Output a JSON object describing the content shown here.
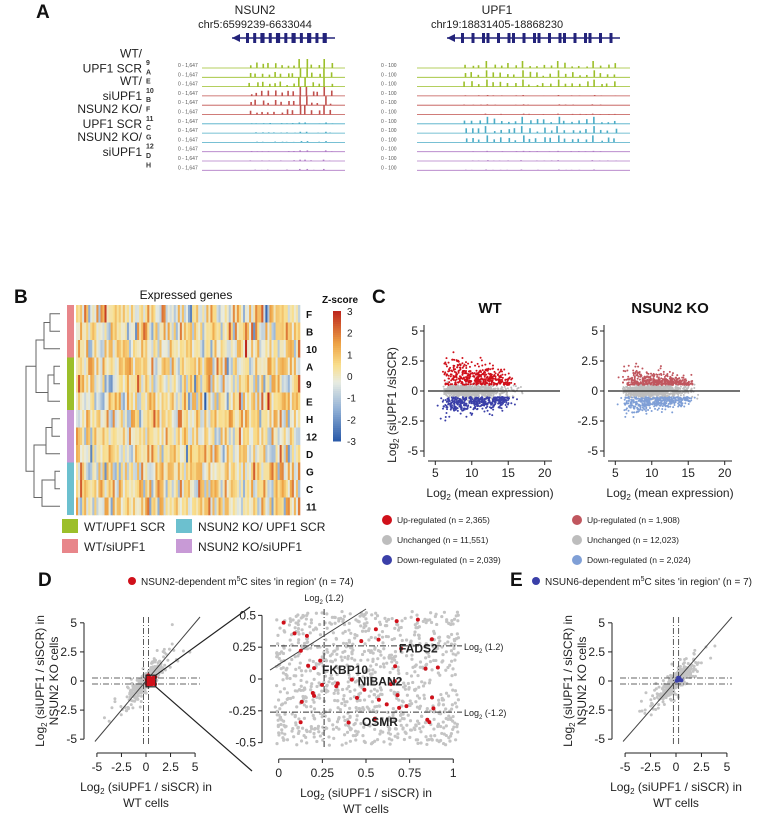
{
  "panels": {
    "a": "A",
    "b": "B",
    "c": "C",
    "d": "D",
    "e": "E"
  },
  "panel_a": {
    "genes": [
      {
        "name": "NSUN2",
        "locus": "chr5:6599239-6633044",
        "scale": "0 - 1,647"
      },
      {
        "name": "UPF1",
        "locus": "chr19:18831405-18868230",
        "scale": "0 - 100"
      }
    ],
    "groups": [
      {
        "line1": "WT/",
        "line2": "UPF1 SCR",
        "color": "#9cbf2a",
        "tracks": [
          "9",
          "A",
          "E"
        ]
      },
      {
        "line1": "WT/",
        "line2": "siUPF1",
        "color": "#c0504d",
        "tracks": [
          "10",
          "B",
          "F"
        ]
      },
      {
        "line1": "NSUN2 KO/",
        "line2": "UPF1 SCR",
        "color": "#4bacc6",
        "tracks": [
          "11",
          "C",
          "G"
        ]
      },
      {
        "line1": "NSUN2 KO/",
        "line2": "siUPF1",
        "color": "#b07cc6",
        "tracks": [
          "12",
          "D",
          "H"
        ]
      }
    ]
  },
  "panel_b": {
    "title": "Expressed genes",
    "colorbar_title": "Z-score",
    "colorbar_ticks": [
      "3",
      "2",
      "1",
      "0",
      "-1",
      "-2",
      "-3"
    ],
    "row_labels": [
      "F",
      "B",
      "10",
      "A",
      "9",
      "E",
      "H",
      "12",
      "D",
      "G",
      "C",
      "11"
    ],
    "group_colors": [
      "#e8868a",
      "#9cbf2a",
      "#c89ad6",
      "#6cc0cf"
    ],
    "legend": [
      {
        "label": "WT/UPF1 SCR",
        "color": "#9cbf2a"
      },
      {
        "label": "NSUN2 KO/ UPF1 SCR",
        "color": "#6cc0cf"
      },
      {
        "label": "WT/siUPF1",
        "color": "#e8868a"
      },
      {
        "label": "NSUN2 KO/siUPF1",
        "color": "#c89ad6"
      }
    ]
  },
  "panel_c": {
    "ylabel": "Log2 (siUPF1 /siSCR)",
    "xlabel": "Log2 (mean expression)",
    "plots": [
      {
        "title": "WT",
        "legend": [
          {
            "label": "Up-regulated (n = 2,365)",
            "color": "#d0101a"
          },
          {
            "label": "Unchanged (n = 11,551)",
            "color": "#bdbdbd"
          },
          {
            "label": "Down-regulated (n = 2,039)",
            "color": "#3a3fa8"
          }
        ]
      },
      {
        "title": "NSUN2 KO",
        "legend": [
          {
            "label": "Up-regulated (n = 1,908)",
            "color": "#c0565e"
          },
          {
            "label": "Unchanged (n = 12,023)",
            "color": "#bdbdbd"
          },
          {
            "label": "Down-regulated (n = 2,024)",
            "color": "#7f9fd6"
          }
        ]
      }
    ],
    "x_ticks": [
      "5",
      "10",
      "15",
      "20"
    ],
    "y_ticks": [
      "5",
      "2.5",
      "0",
      "-2.5",
      "-5"
    ]
  },
  "panel_d": {
    "legend": "NSUN2-dependent m5C sites 'in region' (n = 74)",
    "ylabel_line1": "Log2 (siUPF1 / siSCR) in",
    "ylabel_line2": "NSUN2 KO cells",
    "xlabel_line1": "Log2 (siUPF1 / siSCR) in",
    "xlabel_line2": "WT cells",
    "x_ticks": [
      "-5",
      "-2.5",
      "0",
      "2.5",
      "5"
    ],
    "y_ticks": [
      "5",
      "2.5",
      "0",
      "-2.5",
      "-5"
    ],
    "zoom_x_ticks": [
      "0",
      "0.25",
      "0.5",
      "0.75",
      "1"
    ],
    "zoom_y_ticks": [
      "0.5",
      "0.25",
      "0",
      "-0.25",
      "-0.5"
    ],
    "thresholds": {
      "top": "Log2 (1.2)",
      "right_upper": "Log2 (1.2)",
      "right_lower": "Log2 (-1.2)"
    },
    "genes": [
      "FADS2",
      "FKBP10",
      "NIBAN2",
      "OSMR"
    ]
  },
  "panel_e": {
    "legend": "NSUN6-dependent m5C sites 'in region' (n = 7)",
    "ylabel_line1": "Log2 (siUPF1 / siSCR) in",
    "ylabel_line2": "NSUN2 KO cells",
    "xlabel_line1": "Log2 (siUPF1 / siSCR) in",
    "xlabel_line2": "WT cells",
    "x_ticks": [
      "-5",
      "-2.5",
      "0",
      "2.5",
      "5"
    ],
    "y_ticks": [
      "5",
      "2.5",
      "0",
      "-2.5",
      "-5"
    ]
  }
}
